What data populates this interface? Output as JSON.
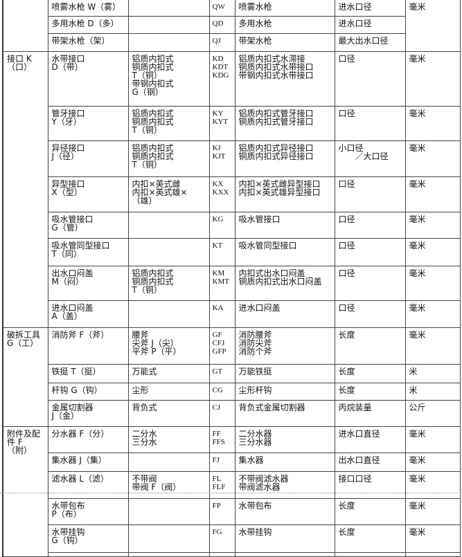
{
  "table": {
    "rows": [
      {
        "category": "",
        "name": "喷雾水枪 W（雾）",
        "subtypes": "",
        "codes": "QW",
        "full_names": "喷雾水枪",
        "spec": "进水口径",
        "unit": "毫米"
      },
      {
        "category": null,
        "name": "多用水枪 D（多）",
        "subtypes": "",
        "codes": "QD",
        "full_names": "多用水枪",
        "spec": "进水口径",
        "unit": null
      },
      {
        "category": null,
        "name": "带架水枪（架）",
        "subtypes": "",
        "codes": "QJ",
        "full_names": "带架水枪",
        "spec": "最大出水口径",
        "unit": null
      },
      {
        "category": "接口 K\n（口）",
        "name": "水带接口\nD（带）",
        "subtypes": "铝质内扣式\n铜质内扣式\nT（铜）\n带钢内扣式\nG（钢）",
        "codes": "KD\nKDT\nKDG",
        "full_names": "铝质内扣式水滞接\n铜质内扣式水带接口\n带钢内扣式水带接口",
        "spec": "口径",
        "unit": "毫米"
      },
      {
        "category": null,
        "name": "管牙接口\nY（牙）",
        "subtypes": "铝质内扣式\n铜质内扣式\nT（铜）",
        "codes": "KY\nKYT",
        "full_names": "铝质内扣式管牙接口\n铜质内扣式管牙接口",
        "spec": "口径",
        "unit": "毫米"
      },
      {
        "category": null,
        "name": "异径接口\nJ（径）",
        "subtypes": "铝质内扣式\n铜质内扣式\nT（铜）",
        "codes": "KJ\nKJT",
        "full_names": "铝质内扣式异径接口\n铜质内扣式异径接口",
        "spec": "小口径\n　　／大口径",
        "unit": "毫米"
      },
      {
        "category": null,
        "name": "异型接口\nX（型）",
        "subtypes": "内扣×英式雌\n内扣×英式雄×\n（雄）",
        "codes": "KX\nKXX",
        "full_names": "内扣×英式雌异型接口\n内扣×英式雄异型接口",
        "spec": "口径",
        "unit": "毫米"
      },
      {
        "category": null,
        "name": "吸水管接口\nG（管）",
        "subtypes": "",
        "codes": "KG",
        "full_names": "吸水管接口",
        "spec": "口径",
        "unit": "毫米"
      },
      {
        "category": null,
        "name": "吸水管同型接口\nT（同）",
        "subtypes": "",
        "codes": "KT",
        "full_names": "吸水管同型接口",
        "spec": "口径",
        "unit": "毫米"
      },
      {
        "category": null,
        "name": "出水口闷盖\nM（闷）",
        "subtypes": "铝质内扣式\n铜质内扣式\nT（铜）",
        "codes": "KM\nKMT",
        "full_names": "内扣式出水口闷盖\n铜质内扣式出水口闷盖",
        "spec": "口径",
        "unit": "毫米"
      },
      {
        "category": null,
        "name": "进水口闷盖\nA（盖）",
        "subtypes": "",
        "codes": "KA",
        "full_names": "进水口闷盖",
        "spec": "口径",
        "unit": "毫米"
      },
      {
        "category": "破拆工具\nG（工）",
        "name": "消防斧 F（斧）",
        "subtypes": "腰斧\n尖斧 J（尖）\n平斧 P（平）",
        "codes": "GF\nCFJ\nGFP",
        "full_names": "消防腰斧\n消防尖斧\n消防个斧",
        "spec": "长度",
        "unit": "毫米"
      },
      {
        "category": null,
        "name": "铁挺 T（挺）",
        "subtypes": "万能式",
        "codes": "GT",
        "full_names": "万能铁挺",
        "spec": "长度",
        "unit": "米"
      },
      {
        "category": null,
        "name": "杆钩 G（钩）",
        "subtypes": "尘形",
        "codes": "CG",
        "full_names": "尘形杆钩",
        "spec": "长度",
        "unit": "米"
      },
      {
        "category": null,
        "name": "金属切割器\nJ（金）",
        "subtypes": "背负式",
        "codes": "CJ",
        "full_names": "背负式金属切割器",
        "spec": "丙烷装量",
        "unit": "公斤"
      },
      {
        "category": "附件及配\n件 F\n（附）",
        "name": "分水器 F（分）",
        "subtypes": "二分水\n三分水",
        "codes": "FF\nFFS",
        "full_names": "二分水器\n三分水器",
        "spec": "进水口直径",
        "unit": "毫米"
      },
      {
        "category": null,
        "name": "集水器 J（集）",
        "subtypes": "",
        "codes": "FJ",
        "full_names": "集水器",
        "spec": "出水口直径",
        "unit": "毫米"
      },
      {
        "category": null,
        "name": "滤水器 L（滤）",
        "subtypes": "不带阀\n带阀 F（阀）",
        "codes": "FL\nFLF",
        "full_names": "不带阀滤水器\n带阀滤水器",
        "spec": "接口口径",
        "unit": "毫米"
      },
      {
        "category": null,
        "name": "水带包布\nP（布）",
        "subtypes": "",
        "codes": "FP",
        "full_names": "水带包布",
        "spec": "长度",
        "unit": "毫米"
      },
      {
        "category": null,
        "name": "水带挂钩\nG（钩）",
        "subtypes": "",
        "codes": "FG",
        "full_names": "水带挂钩",
        "spec": "长度",
        "unit": "毫米"
      },
      {
        "category": null,
        "name": "",
        "subtypes": "",
        "codes": "",
        "full_names": "",
        "spec": "",
        "unit": ""
      }
    ]
  }
}
